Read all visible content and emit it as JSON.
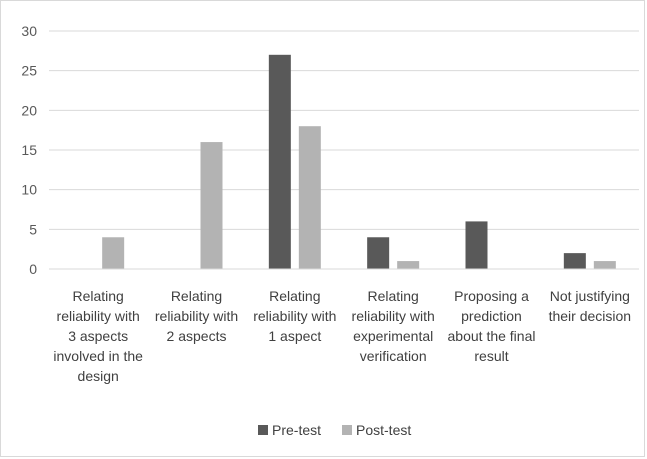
{
  "chart_data": {
    "type": "bar",
    "title": "",
    "xlabel": "",
    "ylabel": "",
    "ylim": [
      0,
      30
    ],
    "yticks": [
      0,
      5,
      10,
      15,
      20,
      25,
      30
    ],
    "grid": true,
    "legend_position": "bottom",
    "categories": [
      [
        "Relating",
        "reliability with",
        "3 aspects",
        "involved in the",
        "design"
      ],
      [
        "Relating",
        "reliability with",
        "2 aspects"
      ],
      [
        "Relating",
        "reliability with",
        "1 aspect"
      ],
      [
        "Relating",
        "reliability with",
        "experimental",
        "verification"
      ],
      [
        "Proposing a",
        "prediction",
        "about the final",
        "result"
      ],
      [
        "Not justifying",
        "their decision"
      ]
    ],
    "series": [
      {
        "name": "Pre-test",
        "color": "#595959",
        "values": [
          0,
          0,
          27,
          4,
          6,
          2
        ]
      },
      {
        "name": "Post-test",
        "color": "#b3b3b3",
        "values": [
          4,
          16,
          18,
          1,
          0,
          1
        ]
      }
    ]
  }
}
